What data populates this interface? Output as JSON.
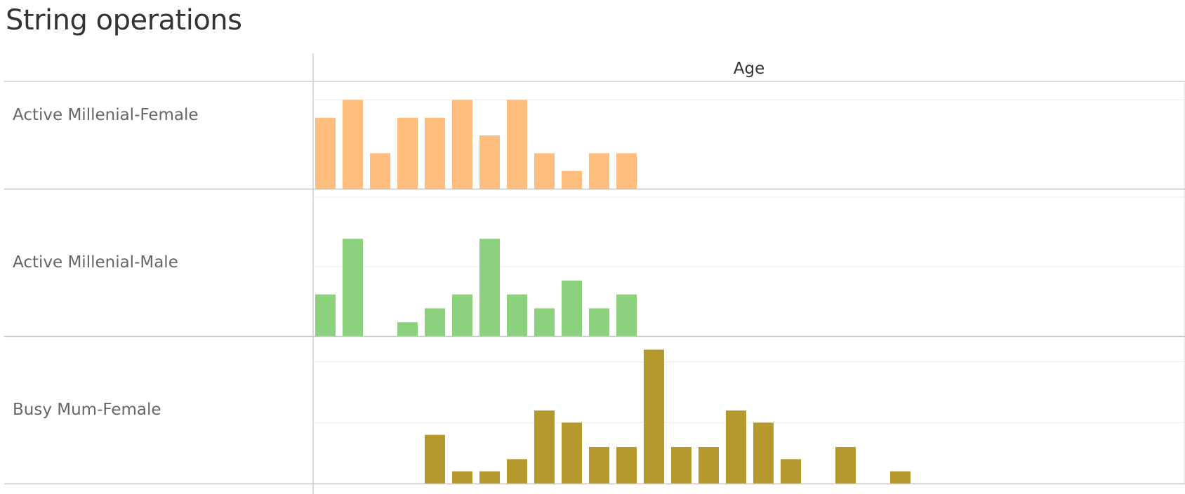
{
  "title": "String operations",
  "chart_data": {
    "type": "bar",
    "column_header": "Age",
    "grid": true,
    "colors": {
      "Active Millenial-Female": "#ffbe7d",
      "Active Millenial-Male": "#8cd17d",
      "Busy Mum-Female": "#b6992d"
    },
    "panels": [
      {
        "label": "Active Millenial-Female",
        "ymax": 6,
        "values": [
          4,
          5,
          2,
          4,
          4,
          5,
          3,
          5,
          2,
          1,
          2,
          2,
          0,
          0,
          0,
          0,
          0,
          0,
          0,
          0,
          0,
          0,
          0,
          0,
          0,
          0,
          0,
          0,
          0,
          0,
          0
        ]
      },
      {
        "label": "Active Millenial-Male",
        "ymax": 10.5,
        "values": [
          3,
          7,
          0,
          1,
          2,
          3,
          7,
          3,
          2,
          4,
          2,
          3,
          0,
          0,
          0,
          0,
          0,
          0,
          0,
          0,
          0,
          0,
          0,
          0,
          0,
          0,
          0,
          0,
          0,
          0,
          0
        ]
      },
      {
        "label": "Busy Mum-Female",
        "ymax": 12,
        "values": [
          0,
          0,
          0,
          0,
          4,
          1,
          1,
          2,
          6,
          5,
          3,
          3,
          11,
          3,
          3,
          6,
          5,
          2,
          0,
          3,
          0,
          1,
          0,
          0,
          0,
          0,
          0,
          0,
          0,
          0,
          0
        ]
      }
    ]
  }
}
